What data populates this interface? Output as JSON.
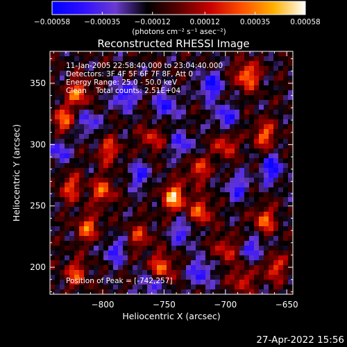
{
  "chart_data": {
    "type": "heatmap",
    "title": "Reconstructed RHESSI Image",
    "xlabel": "Heliocentric X (arcsec)",
    "ylabel": "Heliocentric Y (arcsec)",
    "xlim": [
      -843,
      -645
    ],
    "ylim": [
      178,
      376
    ],
    "x_ticks": [
      -800,
      -750,
      -700,
      -650
    ],
    "y_ticks": [
      200,
      250,
      300,
      350
    ],
    "x_tick_labels": [
      "−800",
      "−750",
      "−700",
      "−650"
    ],
    "y_tick_labels": [
      "200",
      "250",
      "300",
      "350"
    ],
    "colorbar": {
      "range": [
        -0.00058,
        0.00058
      ],
      "ticks": [
        -0.00058,
        -0.00035,
        -0.00012,
        0.00012,
        0.00035,
        0.00058
      ],
      "tick_labels": [
        "−0.00058",
        "−0.00035",
        "−0.00012",
        "0.00012",
        "0.00035",
        "0.00058"
      ],
      "units_label": "(photons cm⁻² s⁻¹ asec⁻²)",
      "colormap": [
        "#0000ff",
        "#3010ff",
        "#6a3bd0",
        "#000000",
        "#5a0000",
        "#c80000",
        "#ff5000",
        "#ffb000",
        "#ffffff"
      ]
    },
    "annotations": [
      "11-Jan-2005 22:58:40.000 to 23:04:40.000",
      "Detectors: 3F 4F 5F 6F 7F 8F, Att 0",
      "Energy Range: 25.0 - 50.0 keV",
      "Clean    Total counts: 2.51E+04"
    ],
    "peak_label": "Position of Peak = [-742,257]",
    "peak": [
      -742,
      257
    ],
    "bright_sources": [
      {
        "x": -682,
        "y": 356,
        "value": 0.0005
      },
      {
        "x": -820,
        "y": 342,
        "value": 0.00045
      },
      {
        "x": -832,
        "y": 320,
        "value": 0.0004
      },
      {
        "x": -668,
        "y": 308,
        "value": 0.0004
      },
      {
        "x": -700,
        "y": 300,
        "value": 0.00035
      },
      {
        "x": -795,
        "y": 295,
        "value": 0.00035
      },
      {
        "x": -760,
        "y": 305,
        "value": 0.0003
      },
      {
        "x": -722,
        "y": 280,
        "value": 0.00035
      },
      {
        "x": -742,
        "y": 257,
        "value": 0.00058
      },
      {
        "x": -720,
        "y": 245,
        "value": 0.0004
      },
      {
        "x": -800,
        "y": 262,
        "value": 0.0004
      },
      {
        "x": -826,
        "y": 265,
        "value": 0.00035
      },
      {
        "x": -812,
        "y": 232,
        "value": 0.0004
      },
      {
        "x": -770,
        "y": 225,
        "value": 0.0003
      },
      {
        "x": -752,
        "y": 200,
        "value": 0.00045
      },
      {
        "x": -700,
        "y": 215,
        "value": 0.0003
      },
      {
        "x": -668,
        "y": 238,
        "value": 0.0004
      },
      {
        "x": -660,
        "y": 200,
        "value": 0.00035
      },
      {
        "x": -822,
        "y": 195,
        "value": 0.00035
      },
      {
        "x": -686,
        "y": 190,
        "value": 0.0003
      }
    ],
    "negative_sources": [
      {
        "x": -782,
        "y": 340,
        "value": -0.0004
      },
      {
        "x": -748,
        "y": 332,
        "value": -0.00035
      },
      {
        "x": -712,
        "y": 348,
        "value": -0.0004
      },
      {
        "x": -662,
        "y": 280,
        "value": -0.0004
      },
      {
        "x": -700,
        "y": 322,
        "value": -0.00035
      },
      {
        "x": -770,
        "y": 275,
        "value": -0.0003
      },
      {
        "x": -836,
        "y": 295,
        "value": -0.0003
      },
      {
        "x": -690,
        "y": 265,
        "value": -0.0003
      },
      {
        "x": -735,
        "y": 228,
        "value": -0.0003
      },
      {
        "x": -790,
        "y": 213,
        "value": -0.0003
      },
      {
        "x": -720,
        "y": 196,
        "value": -0.00035
      },
      {
        "x": -676,
        "y": 215,
        "value": -0.0003
      },
      {
        "x": -760,
        "y": 185,
        "value": -0.0003
      },
      {
        "x": -812,
        "y": 318,
        "value": -0.0003
      },
      {
        "x": -735,
        "y": 300,
        "value": -0.0003
      }
    ]
  },
  "footer": {
    "timestamp": "27-Apr-2022 15:56"
  },
  "colors": {
    "background": "#000000",
    "foreground": "#ffffff"
  }
}
